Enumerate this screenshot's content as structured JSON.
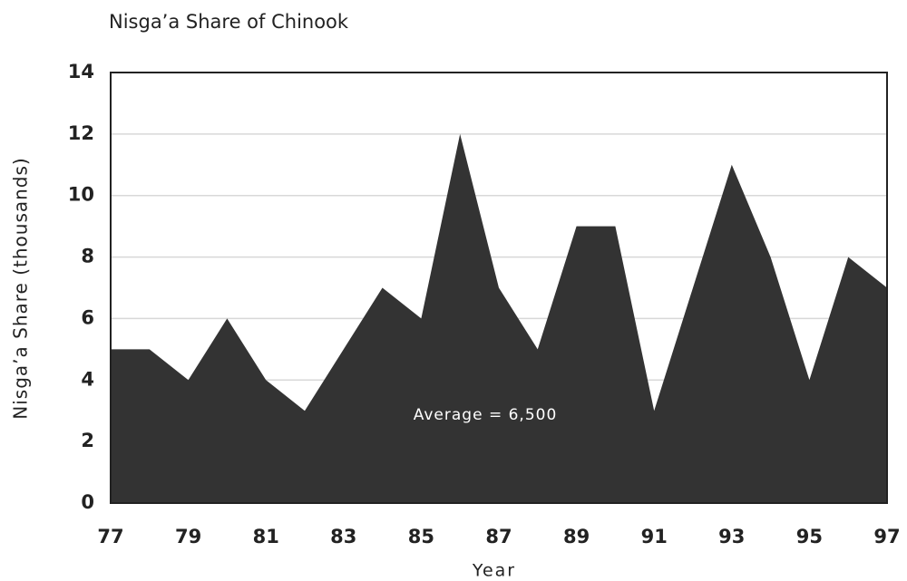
{
  "chart_data": {
    "type": "area",
    "title": "Nisga’a Share of Chinook",
    "ylabel": "Nisga’a Share (thousands)",
    "xlabel": "Year",
    "annotation": "Average = 6,500",
    "x": [
      77,
      78,
      79,
      80,
      81,
      82,
      83,
      84,
      85,
      86,
      87,
      88,
      89,
      90,
      91,
      92,
      93,
      94,
      95,
      96,
      97
    ],
    "values": [
      5,
      5,
      4,
      6,
      4,
      3,
      5,
      7,
      6,
      12,
      7,
      5,
      9,
      9,
      3,
      7,
      11,
      8,
      4,
      8,
      7
    ],
    "color": "#333333",
    "xlim": [
      77,
      97
    ],
    "xticks": [
      77,
      79,
      81,
      83,
      85,
      87,
      89,
      91,
      93,
      95,
      97
    ],
    "ylim": [
      0,
      14
    ],
    "yticks": [
      0,
      2,
      4,
      6,
      8,
      10,
      12,
      14
    ],
    "grid": true
  }
}
